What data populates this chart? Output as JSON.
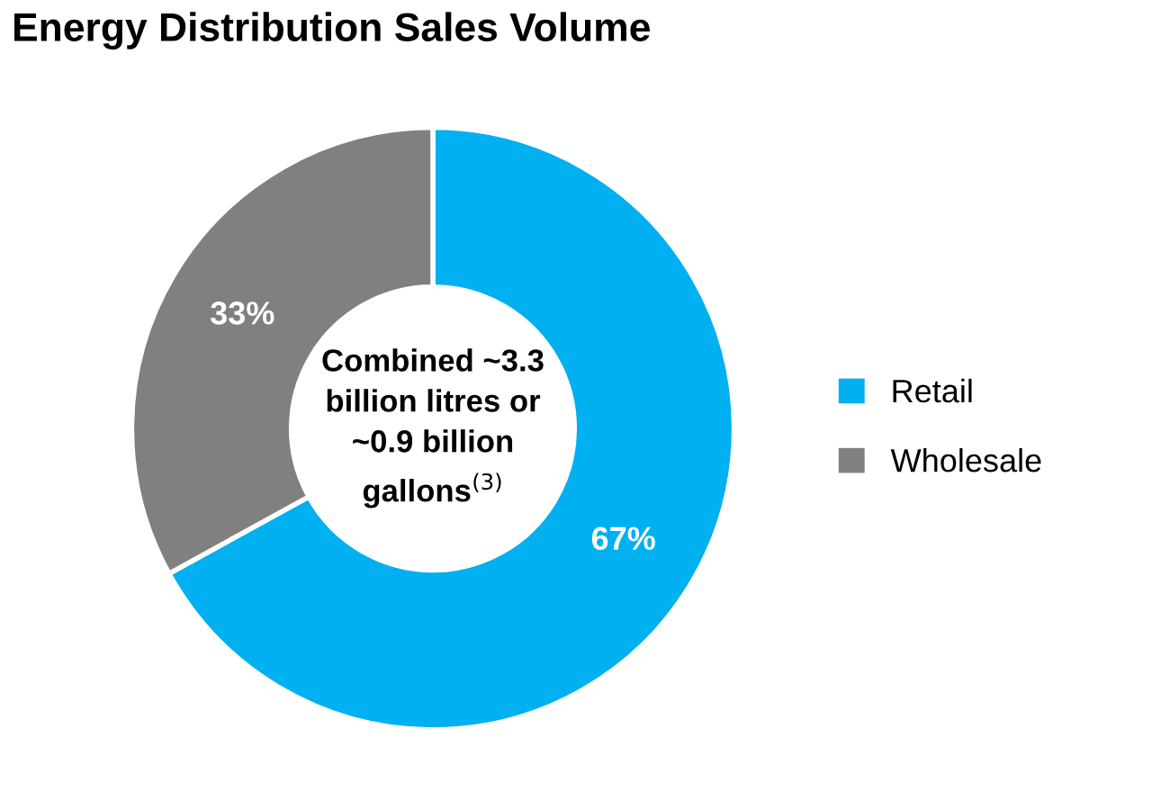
{
  "chart_data": {
    "type": "donut",
    "title": "Energy Distribution Sales Volume",
    "categories": [
      "Retail",
      "Wholesale"
    ],
    "values": [
      67,
      33
    ],
    "colors": [
      "#00b0f0",
      "#808080"
    ],
    "value_labels": [
      "67%",
      "33%"
    ],
    "annotations": [
      "Combined ~3.3\nbillion litres or\n~0.9 billion\ngallons$^{(3)}$"
    ],
    "legend": "right"
  }
}
